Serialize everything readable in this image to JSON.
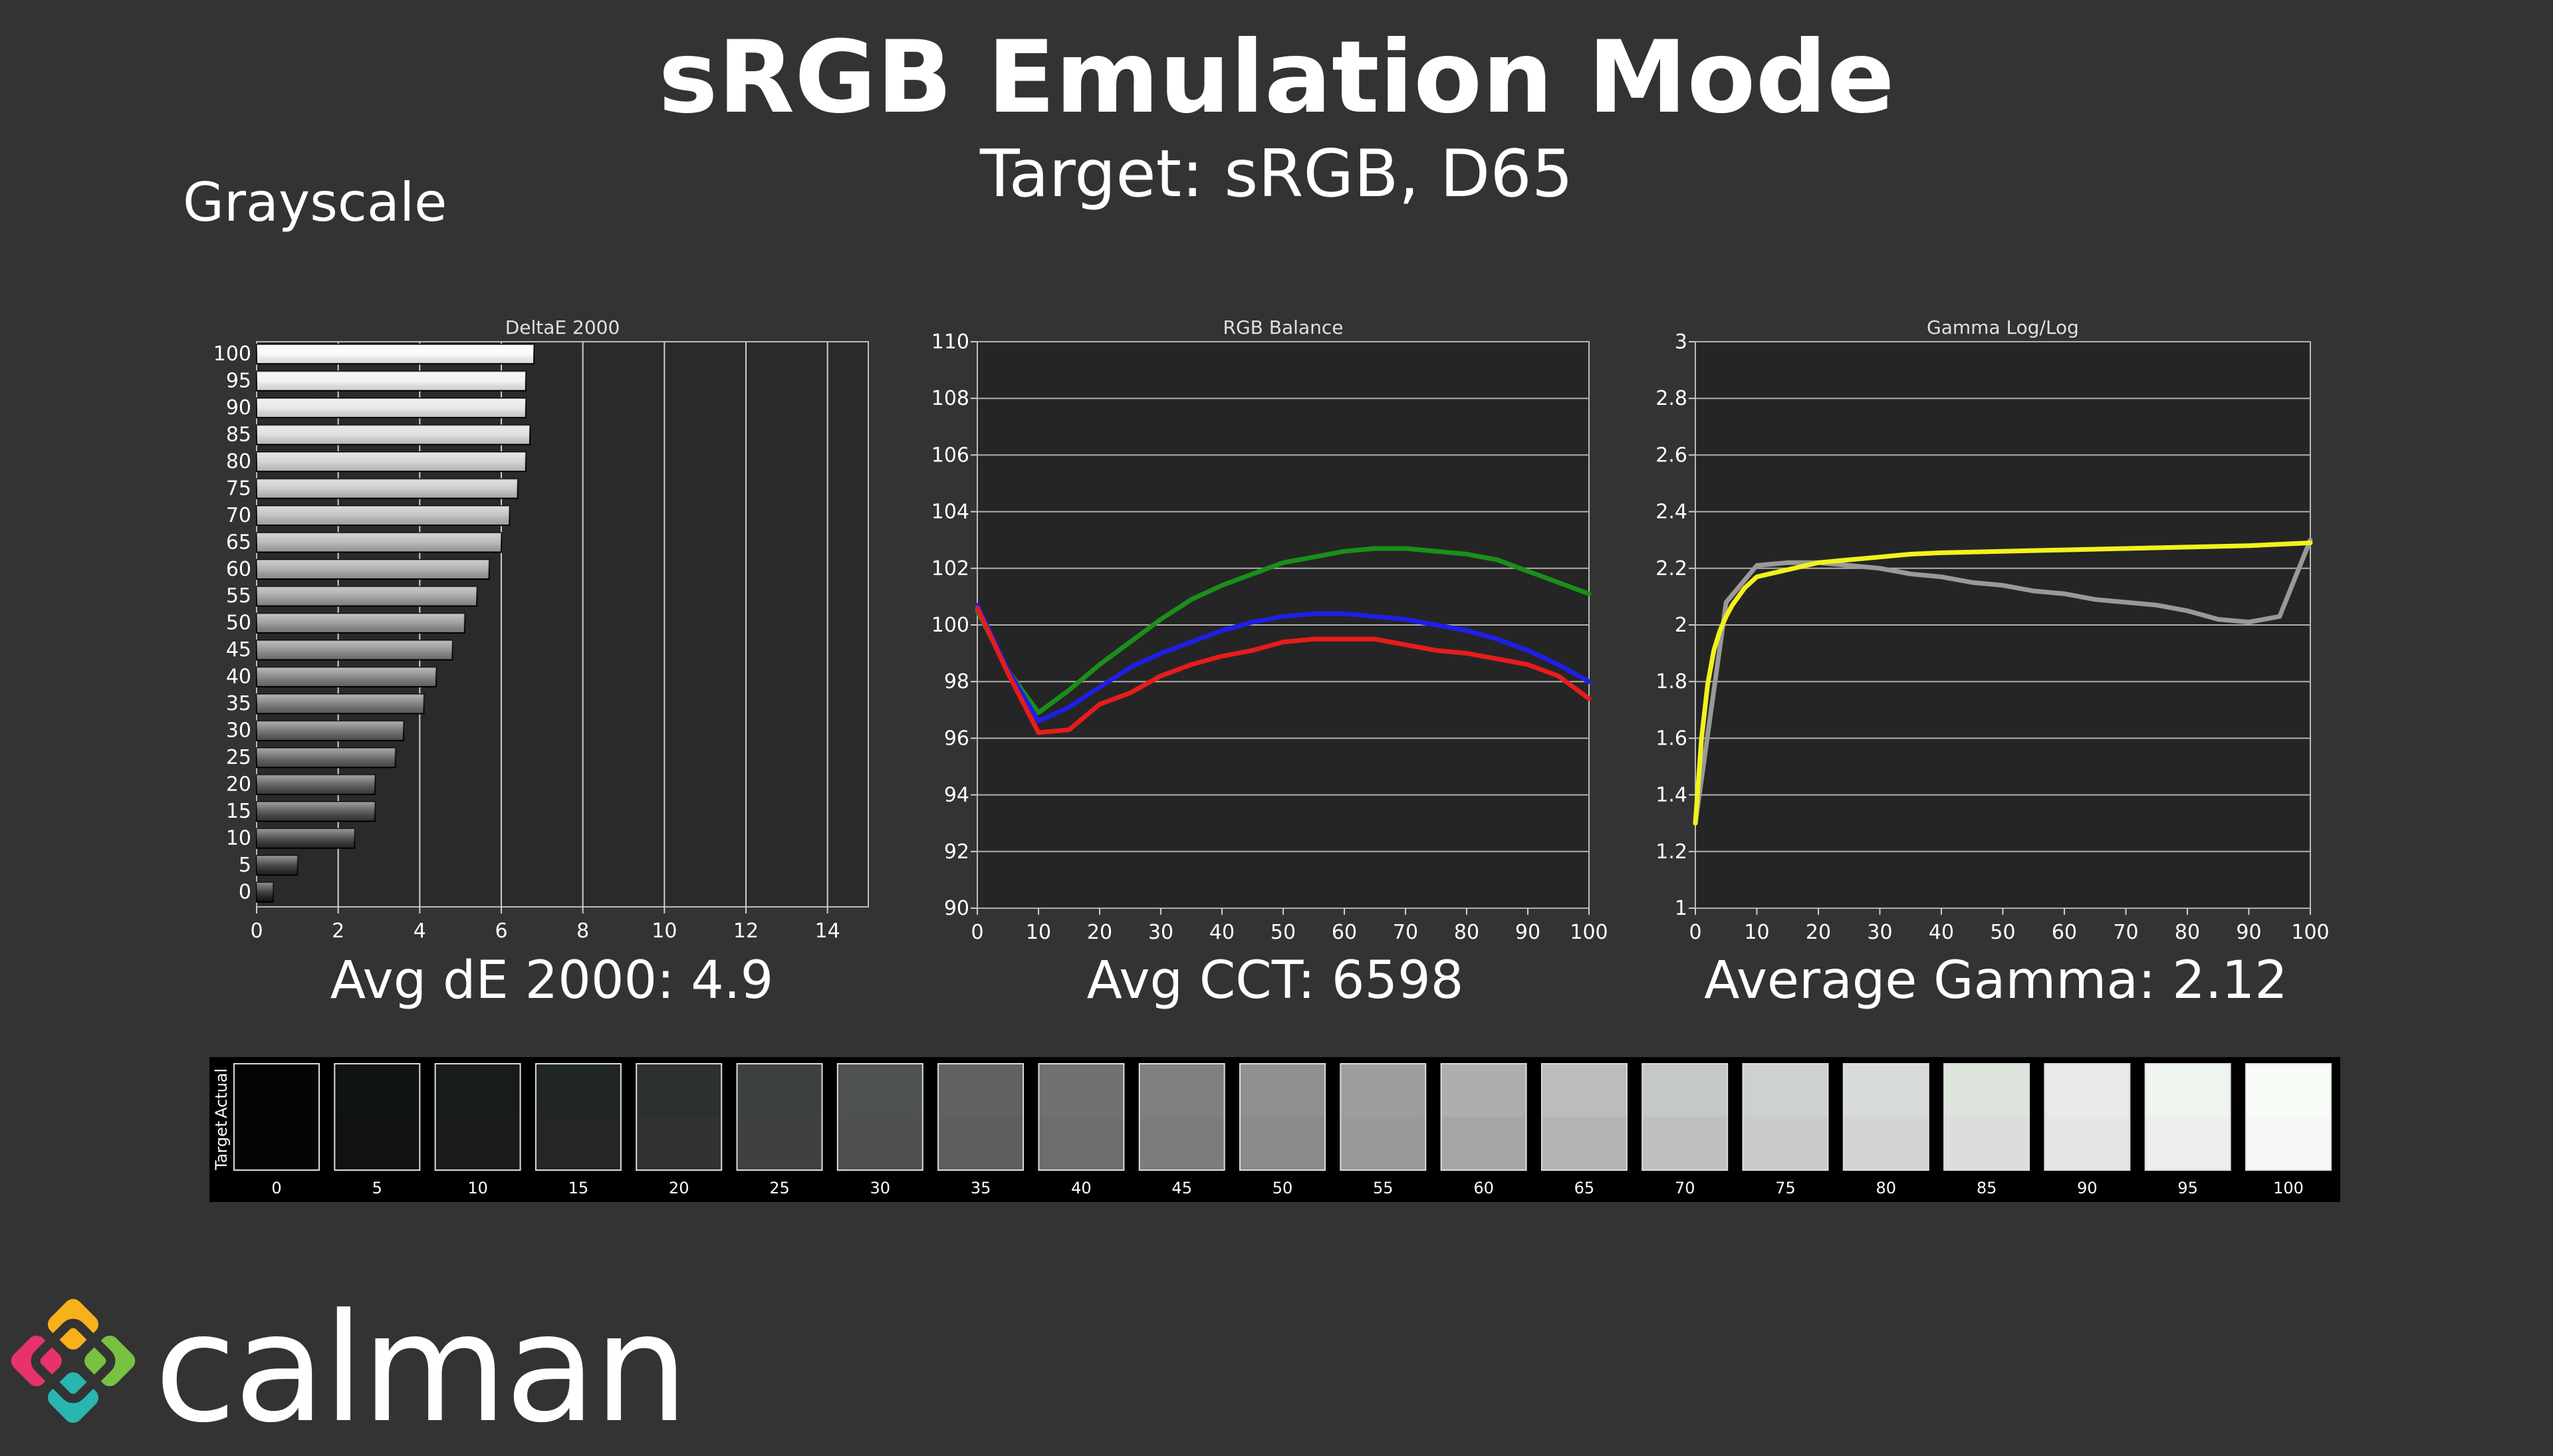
{
  "header": {
    "title": "sRGB Emulation Mode",
    "subtitle": "Target: sRGB, D65",
    "section": "Grayscale"
  },
  "summaries": {
    "delta_e": "Avg dE 2000: 4.9",
    "cct": "Avg CCT: 6598",
    "gamma": "Average Gamma: 2.12"
  },
  "swatches": {
    "actual_label": "Actual",
    "target_label": "Target",
    "levels": [
      "0",
      "5",
      "10",
      "15",
      "20",
      "25",
      "30",
      "35",
      "40",
      "45",
      "50",
      "55",
      "60",
      "65",
      "70",
      "75",
      "80",
      "85",
      "90",
      "95",
      "100"
    ],
    "actual_colors": [
      "#050505",
      "#0f1311",
      "#171b19",
      "#202624",
      "#2c302f",
      "#3c413e",
      "#4e524f",
      "#5f6260",
      "#6f7270",
      "#7f817f",
      "#8e918f",
      "#9d9f9d",
      "#acafad",
      "#babdbb",
      "#c5c9c6",
      "#ced2cf",
      "#d8dcd9",
      "#dce4dc",
      "#e8ebe8",
      "#eef4ee",
      "#f7fcf6"
    ],
    "target_colors": [
      "#050505",
      "#111111",
      "#1b1b1b",
      "#262626",
      "#323232",
      "#404040",
      "#4f4f4f",
      "#5e5e5e",
      "#6d6d6d",
      "#7c7c7c",
      "#8b8b8b",
      "#999999",
      "#a6a6a6",
      "#b3b3b3",
      "#bfbfbf",
      "#cacaca",
      "#d4d4d4",
      "#dddddd",
      "#e6e6e6",
      "#eeeeee",
      "#f7f7f7"
    ]
  },
  "logo": {
    "text": "calman"
  },
  "chart_data": [
    {
      "type": "bar",
      "title": "DeltaE 2000",
      "orientation": "horizontal",
      "categories": [
        "100",
        "95",
        "90",
        "85",
        "80",
        "75",
        "70",
        "65",
        "60",
        "55",
        "50",
        "45",
        "40",
        "35",
        "30",
        "25",
        "20",
        "15",
        "10",
        "5",
        "0"
      ],
      "values": [
        6.8,
        6.6,
        6.6,
        6.7,
        6.6,
        6.4,
        6.2,
        6.0,
        5.7,
        5.4,
        5.1,
        4.8,
        4.4,
        4.1,
        3.6,
        3.4,
        2.9,
        2.9,
        2.4,
        1.0,
        0.4
      ],
      "xlim": [
        0,
        15
      ],
      "xticks": [
        "0",
        "2",
        "4",
        "6",
        "8",
        "10",
        "12",
        "14"
      ],
      "grid": true
    },
    {
      "type": "line",
      "title": "RGB Balance",
      "x": [
        0,
        5,
        10,
        15,
        20,
        25,
        30,
        35,
        40,
        45,
        50,
        55,
        60,
        65,
        70,
        75,
        80,
        85,
        90,
        95,
        100
      ],
      "xticks": [
        "0",
        "10",
        "20",
        "30",
        "40",
        "50",
        "60",
        "70",
        "80",
        "90",
        "100"
      ],
      "yticks": [
        "90",
        "92",
        "94",
        "96",
        "98",
        "100",
        "102",
        "104",
        "106",
        "108",
        "110"
      ],
      "ylim": [
        90,
        110
      ],
      "grid": true,
      "series": [
        {
          "color": "#1a8f1a",
          "values": [
            100.5,
            98.4,
            96.9,
            97.7,
            98.6,
            99.4,
            100.2,
            100.9,
            101.4,
            101.8,
            102.2,
            102.4,
            102.6,
            102.7,
            102.7,
            102.6,
            102.5,
            102.3,
            101.9,
            101.5,
            101.1
          ]
        },
        {
          "color": "#1f1fe6",
          "values": [
            100.7,
            98.4,
            96.6,
            97.1,
            97.8,
            98.5,
            99.0,
            99.4,
            99.8,
            100.1,
            100.3,
            100.4,
            100.4,
            100.3,
            100.2,
            100.0,
            99.8,
            99.5,
            99.1,
            98.6,
            98.0
          ]
        },
        {
          "color": "#e61c1c",
          "values": [
            100.6,
            98.3,
            96.2,
            96.3,
            97.2,
            97.6,
            98.2,
            98.6,
            98.9,
            99.1,
            99.4,
            99.5,
            99.5,
            99.5,
            99.3,
            99.1,
            99.0,
            98.8,
            98.6,
            98.2,
            97.4
          ]
        }
      ]
    },
    {
      "type": "line",
      "title": "Gamma Log/Log",
      "x": [
        0,
        5,
        10,
        15,
        20,
        25,
        30,
        35,
        40,
        45,
        50,
        55,
        60,
        65,
        70,
        75,
        80,
        85,
        90,
        95,
        100
      ],
      "xticks": [
        "0",
        "10",
        "20",
        "30",
        "40",
        "50",
        "60",
        "70",
        "80",
        "90",
        "100"
      ],
      "yticks": [
        "1",
        "1.2",
        "1.4",
        "1.6",
        "1.8",
        "2",
        "2.2",
        "2.4",
        "2.6",
        "2.8",
        "3"
      ],
      "ylim": [
        1,
        3
      ],
      "grid": true,
      "series": [
        {
          "color": "#999999",
          "values": [
            1.3,
            2.08,
            2.21,
            2.22,
            2.22,
            2.21,
            2.2,
            2.18,
            2.17,
            2.15,
            2.14,
            2.12,
            2.11,
            2.09,
            2.08,
            2.07,
            2.05,
            2.02,
            2.01,
            2.03,
            2.3
          ]
        },
        {
          "color": "#f2f21c",
          "values": [
            1.3,
            1.6,
            1.79,
            1.91,
            1.98,
            2.03,
            2.07,
            2.1,
            2.13,
            2.15,
            2.17,
            2.18,
            2.19,
            2.2,
            2.21,
            2.22,
            2.23,
            2.24,
            2.25,
            2.255,
            2.26,
            2.265,
            2.27,
            2.275,
            2.28,
            2.285,
            2.29
          ],
          "x": [
            0,
            1,
            2,
            3,
            4,
            5,
            6,
            7,
            8,
            9,
            10,
            12,
            14,
            16,
            18,
            20,
            25,
            30,
            35,
            40,
            50,
            60,
            70,
            80,
            90,
            95,
            100
          ]
        }
      ]
    }
  ]
}
